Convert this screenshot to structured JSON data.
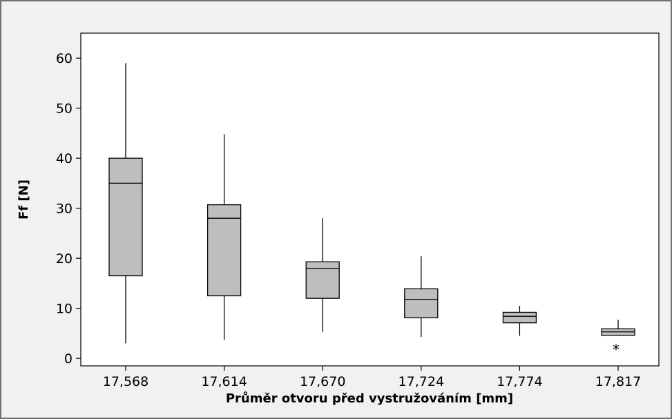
{
  "chart_data": {
    "type": "boxplot",
    "title": "",
    "xlabel": "Průměr otvoru před vystružováním [mm]",
    "ylabel": "Ff [N]",
    "ylim": [
      -1.5,
      65
    ],
    "yticks": [
      0,
      10,
      20,
      30,
      40,
      50,
      60
    ],
    "grid": false,
    "categories": [
      "17,568",
      "17,614",
      "17,670",
      "17,724",
      "17,774",
      "17,817"
    ],
    "boxes": [
      {
        "category": "17,568",
        "whisker_low": 3.0,
        "q1": 16.5,
        "median": 35.0,
        "q3": 40.0,
        "whisker_high": 59.0,
        "outliers": []
      },
      {
        "category": "17,614",
        "whisker_low": 3.7,
        "q1": 12.5,
        "median": 28.0,
        "q3": 30.7,
        "whisker_high": 44.8,
        "outliers": []
      },
      {
        "category": "17,670",
        "whisker_low": 5.3,
        "q1": 12.0,
        "median": 18.0,
        "q3": 19.3,
        "whisker_high": 28.0,
        "outliers": []
      },
      {
        "category": "17,724",
        "whisker_low": 4.3,
        "q1": 8.1,
        "median": 11.8,
        "q3": 13.9,
        "whisker_high": 20.4,
        "outliers": []
      },
      {
        "category": "17,774",
        "whisker_low": 4.5,
        "q1": 7.1,
        "median": 8.4,
        "q3": 9.2,
        "whisker_high": 10.5,
        "outliers": []
      },
      {
        "category": "17,817",
        "whisker_low": 4.6,
        "q1": 4.6,
        "median": 5.3,
        "q3": 5.9,
        "whisker_high": 7.7,
        "outliers": [
          2.0
        ]
      }
    ],
    "colors": {
      "box_fill": "#bebebe",
      "line": "#000000",
      "background": "#f1f1f1",
      "plot_background": "#ffffff"
    }
  }
}
